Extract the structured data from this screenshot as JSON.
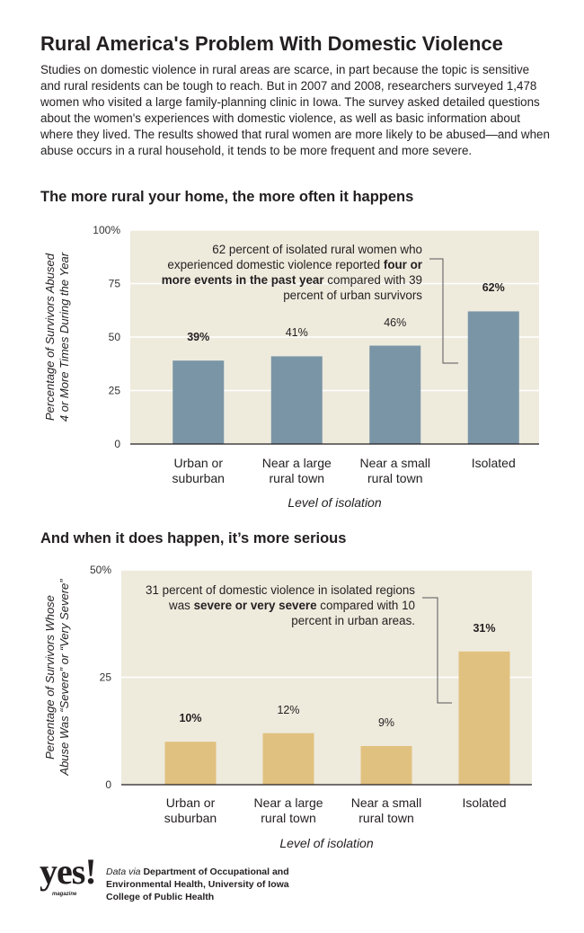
{
  "headline": "Rural America's Problem With Domestic Violence",
  "intro": "Studies on domestic violence in rural areas are scarce, in part because the topic is sensitive and rural residents can be tough to reach. But in 2007 and 2008, researchers surveyed 1,478 women who visited a large family-planning clinic in Iowa. The survey asked detailed questions about the women's experiences with domestic violence, as well as basic information about where they lived. The results showed that rural women are more likely to be abused—and when abuse occurs in a rural household, it tends to be more frequent and more severe.",
  "chart_data": [
    {
      "type": "bar",
      "title": "The more rural your home, the more often it happens",
      "ylabel": [
        "Percentage of Survivors Abused",
        "4 or More Times During the Year"
      ],
      "xlabel": "Level of isolation",
      "categories": [
        "Urban or suburban",
        "Near a large rural town",
        "Near a small rural town",
        "Isolated"
      ],
      "values": [
        39,
        41,
        46,
        62
      ],
      "value_labels": [
        "39%",
        "41%",
        "46%",
        "62%"
      ],
      "color": "#7a95a6",
      "ylim": [
        0,
        100
      ],
      "yticks": [
        {
          "value": 100,
          "label": "100%"
        },
        75,
        50,
        25,
        0
      ],
      "grid": true,
      "annotation": [
        "62 percent of isolated rural women who experienced domestic violence reported ",
        "four or more events in the past year",
        " compared with 39 percent of urban survivors"
      ]
    },
    {
      "type": "bar",
      "title": "And when it does happen, it’s more serious",
      "ylabel": [
        "Percentage of Survivors Whose",
        "Abuse Was “Severe” or “Very Severe”"
      ],
      "xlabel": "Level of isolation",
      "categories": [
        "Urban or suburban",
        "Near a large rural town",
        "Near a small rural town",
        "Isolated"
      ],
      "values": [
        10,
        12,
        9,
        31
      ],
      "value_labels": [
        "10%",
        "12%",
        "9%",
        "31%"
      ],
      "color": "#e1c17f",
      "ylim": [
        0,
        50
      ],
      "yticks": [
        {
          "value": 50,
          "label": "50%"
        },
        25,
        0
      ],
      "grid": true,
      "annotation": [
        "31 percent of domestic violence in isolated regions was ",
        "severe or very severe",
        " compared with 10 percent in urban areas."
      ]
    }
  ],
  "logo": {
    "name": "yes!",
    "sub": "magazine"
  },
  "source": {
    "prefix": "Data via",
    "text": "Department of Occupational and Environmental Health, University of Iowa College of Public Health"
  }
}
